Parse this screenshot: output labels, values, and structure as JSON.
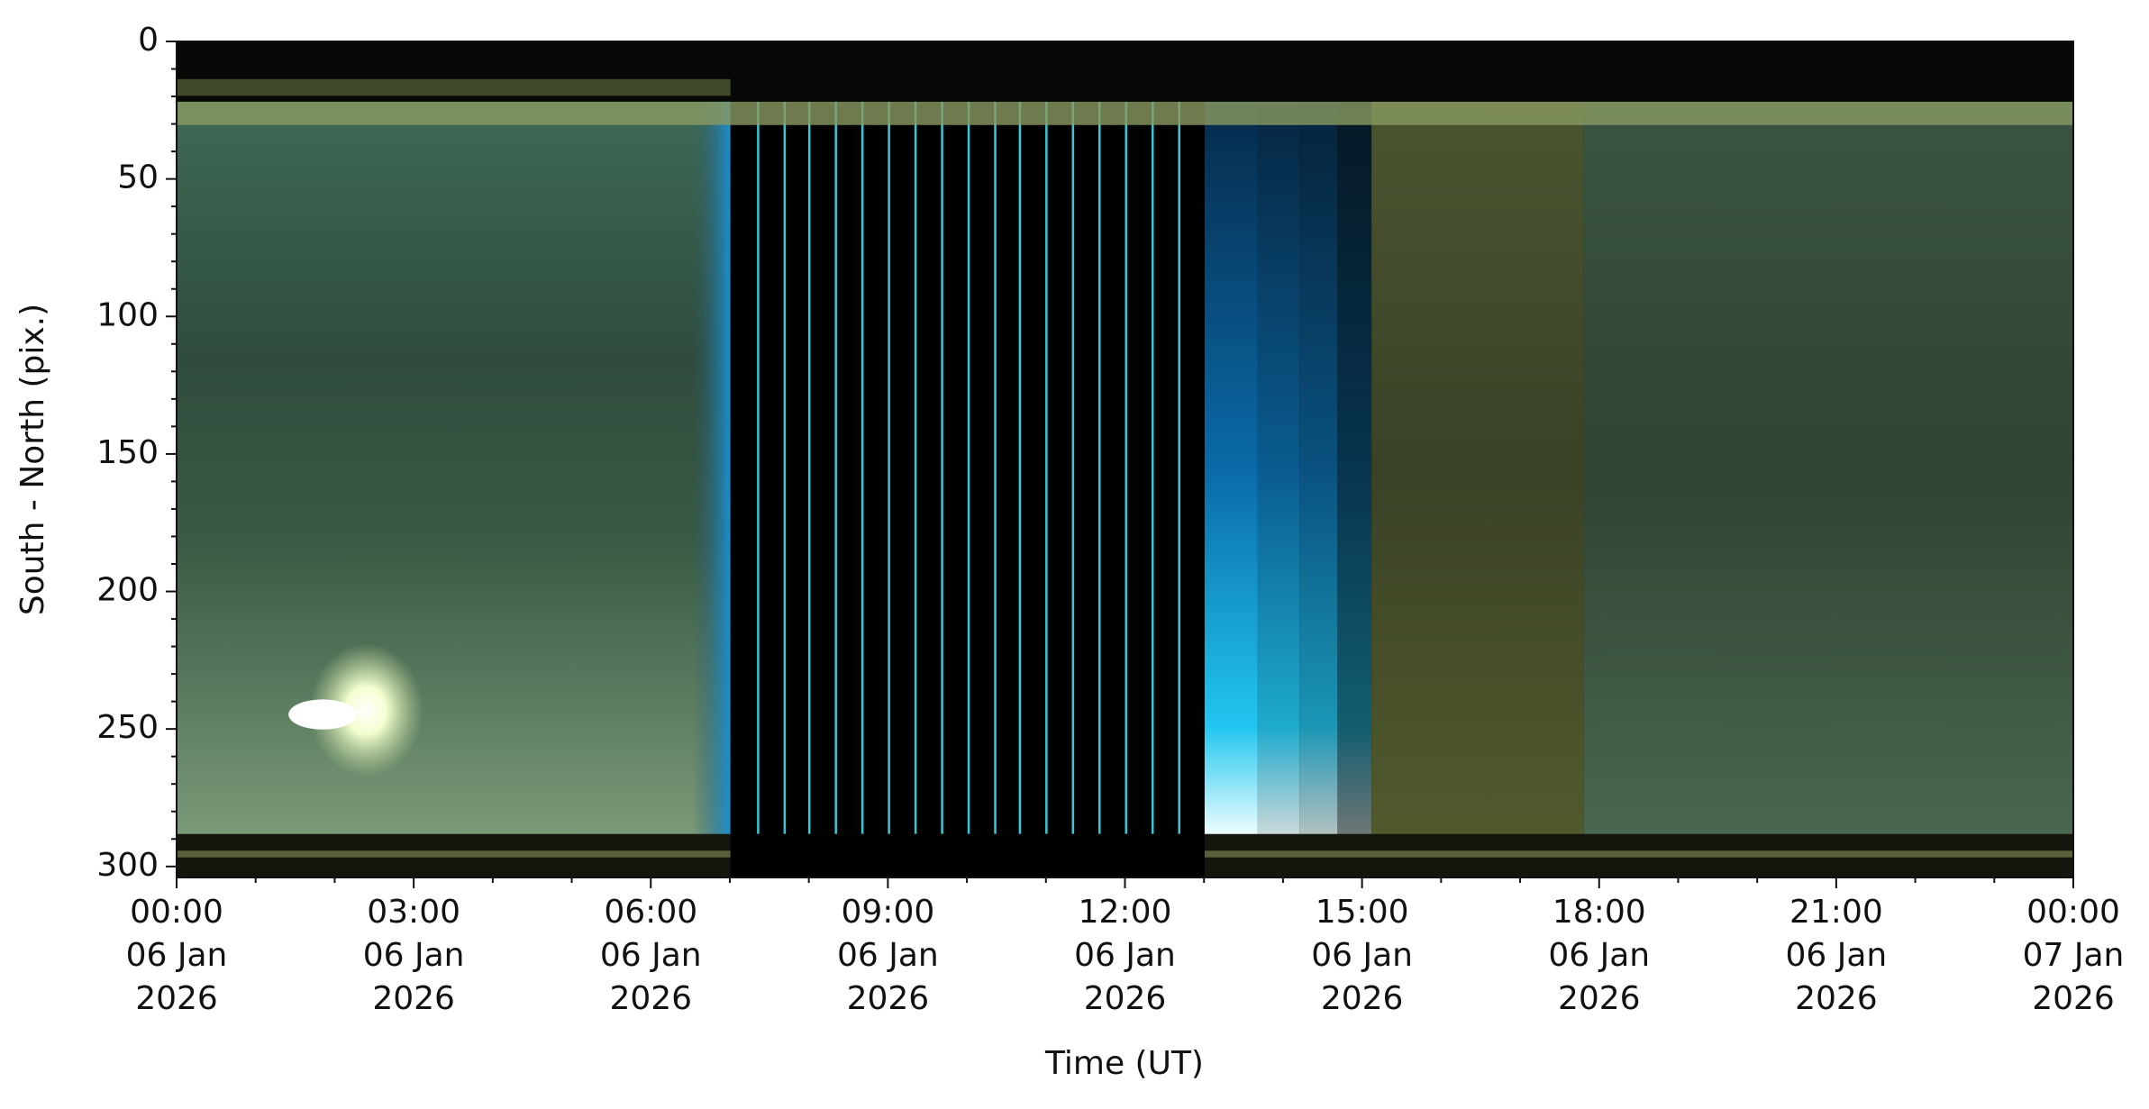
{
  "chart_data": {
    "type": "keogram",
    "xlabel": "Time (UT)",
    "ylabel": "South - North (pix.)",
    "xlim": [
      "2026-01-06T00:00",
      "2026-01-07T00:00"
    ],
    "xticks": [
      {
        "value": "2026-01-06T00:00",
        "label": [
          "00:00",
          "06 Jan",
          "2026"
        ]
      },
      {
        "value": "2026-01-06T03:00",
        "label": [
          "03:00",
          "06 Jan",
          "2026"
        ]
      },
      {
        "value": "2026-01-06T06:00",
        "label": [
          "06:00",
          "06 Jan",
          "2026"
        ]
      },
      {
        "value": "2026-01-06T09:00",
        "label": [
          "09:00",
          "06 Jan",
          "2026"
        ]
      },
      {
        "value": "2026-01-06T12:00",
        "label": [
          "12:00",
          "06 Jan",
          "2026"
        ]
      },
      {
        "value": "2026-01-06T15:00",
        "label": [
          "15:00",
          "06 Jan",
          "2026"
        ]
      },
      {
        "value": "2026-01-06T18:00",
        "label": [
          "18:00",
          "06 Jan",
          "2026"
        ]
      },
      {
        "value": "2026-01-06T21:00",
        "label": [
          "21:00",
          "06 Jan",
          "2026"
        ]
      },
      {
        "value": "2026-01-07T00:00",
        "label": [
          "00:00",
          "07 Jan",
          "2026"
        ]
      }
    ],
    "xminorticks": [
      "2026-01-06T01:00",
      "2026-01-06T02:00",
      "2026-01-06T04:00",
      "2026-01-06T05:00",
      "2026-01-06T07:00",
      "2026-01-06T08:00",
      "2026-01-06T10:00",
      "2026-01-06T11:00",
      "2026-01-06T13:00",
      "2026-01-06T14:00",
      "2026-01-06T16:00",
      "2026-01-06T17:00",
      "2026-01-06T19:00",
      "2026-01-06T20:00",
      "2026-01-06T22:00",
      "2026-01-06T23:00"
    ],
    "ylim": [
      304,
      0
    ],
    "yticks": [
      0,
      50,
      100,
      150,
      200,
      250,
      300
    ],
    "yminorticks": [
      10,
      20,
      30,
      40,
      60,
      70,
      80,
      90,
      110,
      120,
      130,
      140,
      160,
      170,
      180,
      190,
      210,
      220,
      230,
      240,
      260,
      270,
      280,
      290
    ]
  }
}
